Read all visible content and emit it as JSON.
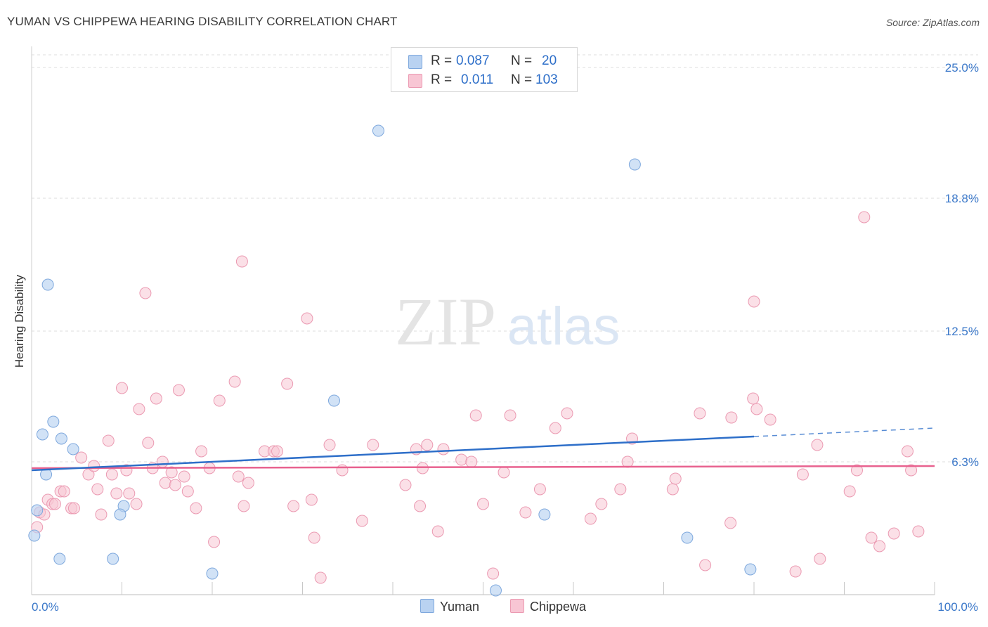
{
  "header": {
    "title": "YUMAN VS CHIPPEWA HEARING DISABILITY CORRELATION CHART",
    "source": "Source: ZipAtlas.com"
  },
  "watermark": {
    "zip": "ZIP",
    "atlas": "atlas"
  },
  "legend": {
    "r_label": "R =",
    "n_label": "N =",
    "yuman": {
      "r": "0.087",
      "n": "20"
    },
    "chippewa": {
      "r": "0.011",
      "n": "103"
    }
  },
  "bottom_legend": {
    "yuman": "Yuman",
    "chippewa": "Chippewa"
  },
  "colors": {
    "yuman_fill": "#b9d2f1",
    "yuman_stroke": "#7ea8dd",
    "yuman_line": "#2e6fc9",
    "chippewa_fill": "#f8c6d4",
    "chippewa_stroke": "#eb9ab2",
    "chippewa_line": "#e8628f",
    "tick_label": "#3b78c9",
    "grid": "#dcdcdc"
  },
  "chart_data": {
    "type": "scatter",
    "title": "YUMAN VS CHIPPEWA HEARING DISABILITY CORRELATION CHART",
    "xlabel": "",
    "ylabel": "Hearing Disability",
    "xlim": [
      0,
      100
    ],
    "ylim": [
      0,
      25
    ],
    "x_tick_labels": [
      "0.0%",
      "100.0%"
    ],
    "y_ticks": [
      6.3,
      12.5,
      18.8,
      25.0
    ],
    "y_tick_labels": [
      "6.3%",
      "12.5%",
      "18.8%",
      "25.0%"
    ],
    "grid": true,
    "series": [
      {
        "name": "Yuman",
        "r": 0.087,
        "n": 20,
        "trend": {
          "x0": 0,
          "y0": 5.9,
          "x1": 80,
          "y1": 7.5,
          "dashed_to_x": 100,
          "dashed_to_y": 7.9
        },
        "points": [
          [
            1.8,
            14.7
          ],
          [
            38.4,
            22.0
          ],
          [
            66.8,
            20.4
          ],
          [
            2.4,
            8.2
          ],
          [
            1.2,
            7.6
          ],
          [
            3.3,
            7.4
          ],
          [
            33.5,
            9.2
          ],
          [
            4.6,
            6.9
          ],
          [
            1.6,
            5.7
          ],
          [
            10.2,
            4.2
          ],
          [
            9.8,
            3.8
          ],
          [
            56.8,
            3.8
          ],
          [
            0.6,
            4.0
          ],
          [
            0.3,
            2.8
          ],
          [
            3.1,
            1.7
          ],
          [
            9.0,
            1.7
          ],
          [
            20.0,
            1.0
          ],
          [
            72.6,
            2.7
          ],
          [
            79.6,
            1.2
          ],
          [
            51.4,
            0.2
          ]
        ]
      },
      {
        "name": "Chippewa",
        "r": 0.011,
        "n": 103,
        "trend": {
          "x0": 0,
          "y0": 6.0,
          "x1": 100,
          "y1": 6.1
        },
        "points": [
          [
            0.6,
            3.2
          ],
          [
            0.9,
            3.9
          ],
          [
            1.4,
            3.8
          ],
          [
            1.8,
            4.5
          ],
          [
            2.3,
            4.3
          ],
          [
            2.6,
            4.3
          ],
          [
            3.2,
            4.9
          ],
          [
            3.6,
            4.9
          ],
          [
            4.4,
            4.1
          ],
          [
            4.7,
            4.1
          ],
          [
            5.5,
            6.5
          ],
          [
            6.3,
            5.7
          ],
          [
            6.9,
            6.1
          ],
          [
            7.3,
            5.0
          ],
          [
            7.7,
            3.8
          ],
          [
            8.5,
            7.3
          ],
          [
            8.9,
            5.7
          ],
          [
            9.4,
            4.8
          ],
          [
            10.0,
            9.8
          ],
          [
            10.5,
            5.9
          ],
          [
            10.8,
            4.8
          ],
          [
            11.6,
            4.3
          ],
          [
            11.9,
            8.8
          ],
          [
            12.6,
            14.3
          ],
          [
            12.9,
            7.2
          ],
          [
            13.4,
            6.0
          ],
          [
            13.8,
            9.3
          ],
          [
            14.5,
            6.3
          ],
          [
            14.8,
            5.3
          ],
          [
            15.5,
            5.8
          ],
          [
            15.9,
            5.2
          ],
          [
            16.3,
            9.7
          ],
          [
            16.9,
            5.6
          ],
          [
            17.3,
            4.9
          ],
          [
            18.2,
            4.1
          ],
          [
            18.8,
            6.8
          ],
          [
            19.7,
            6.0
          ],
          [
            20.2,
            2.5
          ],
          [
            20.8,
            9.2
          ],
          [
            22.5,
            10.1
          ],
          [
            22.9,
            5.6
          ],
          [
            23.5,
            4.2
          ],
          [
            23.3,
            15.8
          ],
          [
            24.0,
            5.3
          ],
          [
            25.8,
            6.8
          ],
          [
            26.8,
            6.8
          ],
          [
            27.2,
            6.8
          ],
          [
            28.3,
            10.0
          ],
          [
            29.0,
            4.2
          ],
          [
            30.5,
            13.1
          ],
          [
            31.0,
            4.5
          ],
          [
            31.3,
            2.7
          ],
          [
            32.0,
            0.8
          ],
          [
            33.0,
            7.1
          ],
          [
            34.4,
            5.9
          ],
          [
            36.6,
            3.5
          ],
          [
            37.8,
            7.1
          ],
          [
            41.4,
            5.2
          ],
          [
            42.6,
            6.9
          ],
          [
            43.0,
            4.2
          ],
          [
            43.3,
            6.0
          ],
          [
            43.8,
            7.1
          ],
          [
            45.0,
            3.0
          ],
          [
            45.6,
            6.9
          ],
          [
            47.6,
            6.4
          ],
          [
            48.7,
            6.3
          ],
          [
            49.2,
            8.5
          ],
          [
            50.0,
            4.3
          ],
          [
            51.1,
            1.0
          ],
          [
            52.3,
            5.8
          ],
          [
            53.0,
            8.5
          ],
          [
            54.7,
            3.9
          ],
          [
            56.3,
            5.0
          ],
          [
            58.0,
            7.9
          ],
          [
            59.3,
            8.6
          ],
          [
            61.9,
            3.6
          ],
          [
            63.1,
            4.3
          ],
          [
            65.2,
            5.0
          ],
          [
            66.0,
            6.3
          ],
          [
            66.5,
            7.4
          ],
          [
            71.0,
            5.0
          ],
          [
            71.3,
            5.5
          ],
          [
            74.0,
            8.6
          ],
          [
            74.6,
            1.4
          ],
          [
            77.5,
            8.4
          ],
          [
            77.4,
            3.4
          ],
          [
            79.9,
            9.3
          ],
          [
            80.3,
            8.8
          ],
          [
            80.0,
            13.9
          ],
          [
            81.8,
            8.3
          ],
          [
            84.6,
            1.1
          ],
          [
            85.4,
            5.7
          ],
          [
            87.3,
            1.7
          ],
          [
            87.0,
            7.1
          ],
          [
            90.6,
            4.9
          ],
          [
            91.4,
            5.9
          ],
          [
            92.2,
            17.9
          ],
          [
            93.0,
            2.7
          ],
          [
            93.9,
            2.3
          ],
          [
            95.5,
            2.9
          ],
          [
            97.0,
            6.8
          ],
          [
            97.4,
            5.9
          ],
          [
            98.2,
            3.0
          ]
        ]
      }
    ]
  }
}
